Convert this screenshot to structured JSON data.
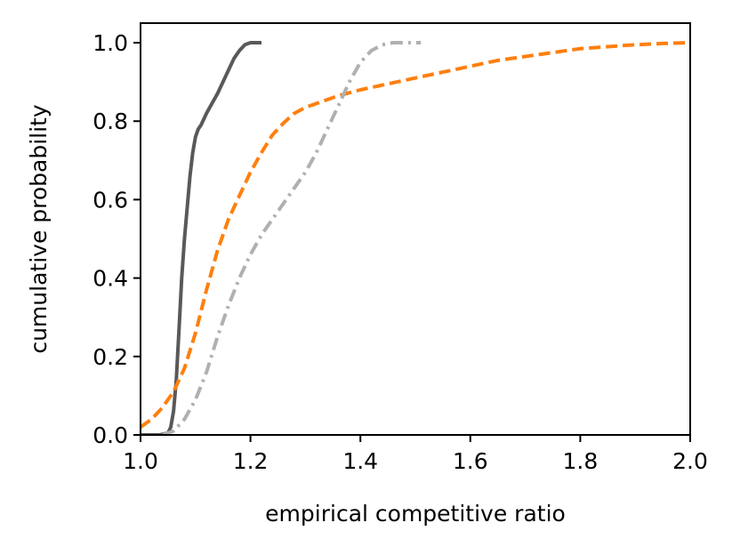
{
  "chart_data": {
    "type": "line",
    "title": "",
    "xlabel": "empirical competitive ratio",
    "ylabel": "cumulative probability",
    "xlim": [
      1.0,
      2.0
    ],
    "ylim": [
      0.0,
      1.05
    ],
    "grid": false,
    "xticks": [
      "1.0",
      "1.2",
      "1.4",
      "1.6",
      "1.8",
      "2.0"
    ],
    "yticks": [
      "0.0",
      "0.2",
      "0.4",
      "0.6",
      "0.8",
      "1.0"
    ],
    "series": [
      {
        "color": "#595959",
        "style": "solid",
        "x": [
          1.0,
          1.035,
          1.05,
          1.055,
          1.06,
          1.065,
          1.07,
          1.075,
          1.08,
          1.085,
          1.09,
          1.095,
          1.1,
          1.105,
          1.11,
          1.12,
          1.13,
          1.14,
          1.15,
          1.16,
          1.17,
          1.18,
          1.19,
          1.2,
          1.21,
          1.22
        ],
        "y": [
          0.0,
          0.0,
          0.005,
          0.02,
          0.06,
          0.14,
          0.27,
          0.4,
          0.5,
          0.58,
          0.66,
          0.72,
          0.76,
          0.78,
          0.79,
          0.82,
          0.845,
          0.87,
          0.9,
          0.93,
          0.96,
          0.98,
          0.995,
          1.0,
          1.0,
          1.0
        ]
      },
      {
        "color": "#ff7f0e",
        "style": "dashed",
        "x": [
          1.0,
          1.02,
          1.04,
          1.06,
          1.08,
          1.1,
          1.12,
          1.14,
          1.16,
          1.18,
          1.2,
          1.22,
          1.24,
          1.26,
          1.28,
          1.3,
          1.32,
          1.34,
          1.36,
          1.4,
          1.45,
          1.5,
          1.55,
          1.6,
          1.65,
          1.7,
          1.75,
          1.8,
          1.85,
          1.9,
          1.95,
          2.0
        ],
        "y": [
          0.02,
          0.04,
          0.07,
          0.11,
          0.17,
          0.26,
          0.37,
          0.47,
          0.55,
          0.61,
          0.67,
          0.72,
          0.765,
          0.795,
          0.82,
          0.835,
          0.845,
          0.855,
          0.865,
          0.88,
          0.895,
          0.91,
          0.925,
          0.94,
          0.955,
          0.965,
          0.975,
          0.985,
          0.99,
          0.995,
          0.998,
          1.0
        ]
      },
      {
        "color": "#b0b0b0",
        "style": "dashdot",
        "x": [
          1.04,
          1.06,
          1.08,
          1.1,
          1.12,
          1.14,
          1.16,
          1.18,
          1.2,
          1.22,
          1.24,
          1.26,
          1.28,
          1.3,
          1.32,
          1.34,
          1.36,
          1.38,
          1.4,
          1.42,
          1.44,
          1.46,
          1.48,
          1.5,
          1.51
        ],
        "y": [
          0.0,
          0.01,
          0.04,
          0.09,
          0.16,
          0.25,
          0.33,
          0.4,
          0.46,
          0.51,
          0.55,
          0.59,
          0.63,
          0.67,
          0.72,
          0.78,
          0.84,
          0.9,
          0.95,
          0.98,
          0.995,
          1.0,
          1.0,
          1.0,
          1.0
        ]
      }
    ]
  }
}
